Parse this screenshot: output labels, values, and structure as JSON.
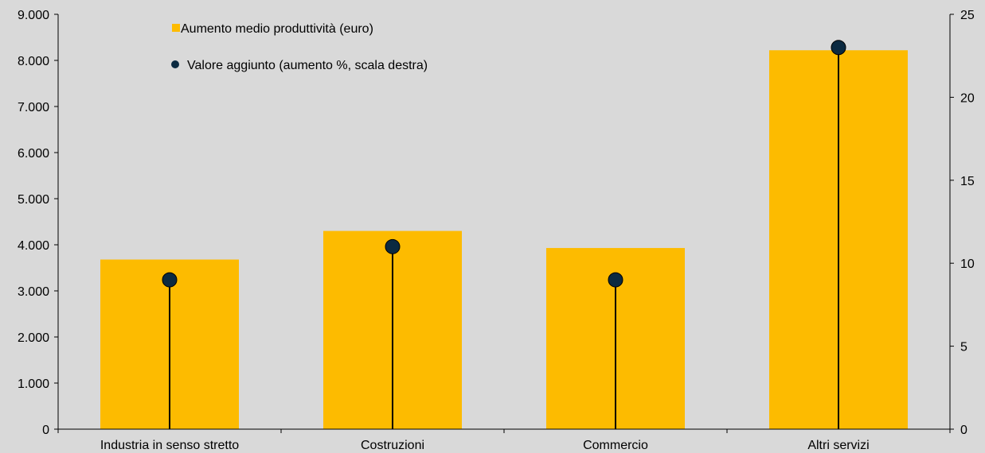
{
  "chart_data": {
    "type": "bar",
    "categories": [
      "Industria in senso stretto",
      "Costruzioni",
      "Commercio",
      "Altri servizi"
    ],
    "series": [
      {
        "name": "Aumento medio produttività  (euro)",
        "type": "bar",
        "axis": "left",
        "values": [
          3680,
          4300,
          3930,
          8220
        ],
        "color": "#fdbb00"
      },
      {
        "name": "Valore aggiunto (aumento %, scala destra)",
        "type": "lollipop",
        "axis": "right",
        "values": [
          9,
          11,
          9,
          23
        ],
        "color": "#0b2a41"
      }
    ],
    "left_axis": {
      "ylim": [
        0,
        9000
      ],
      "ticks": [
        "0",
        "1.000",
        "2.000",
        "3.000",
        "4.000",
        "5.000",
        "6.000",
        "7.000",
        "8.000",
        "9.000"
      ]
    },
    "right_axis": {
      "ylim": [
        0,
        25
      ],
      "ticks": [
        "0",
        "5",
        "10",
        "15",
        "20",
        "25"
      ]
    },
    "legend_placement": "top-left",
    "grid": false,
    "background": "#d9d9d9"
  }
}
